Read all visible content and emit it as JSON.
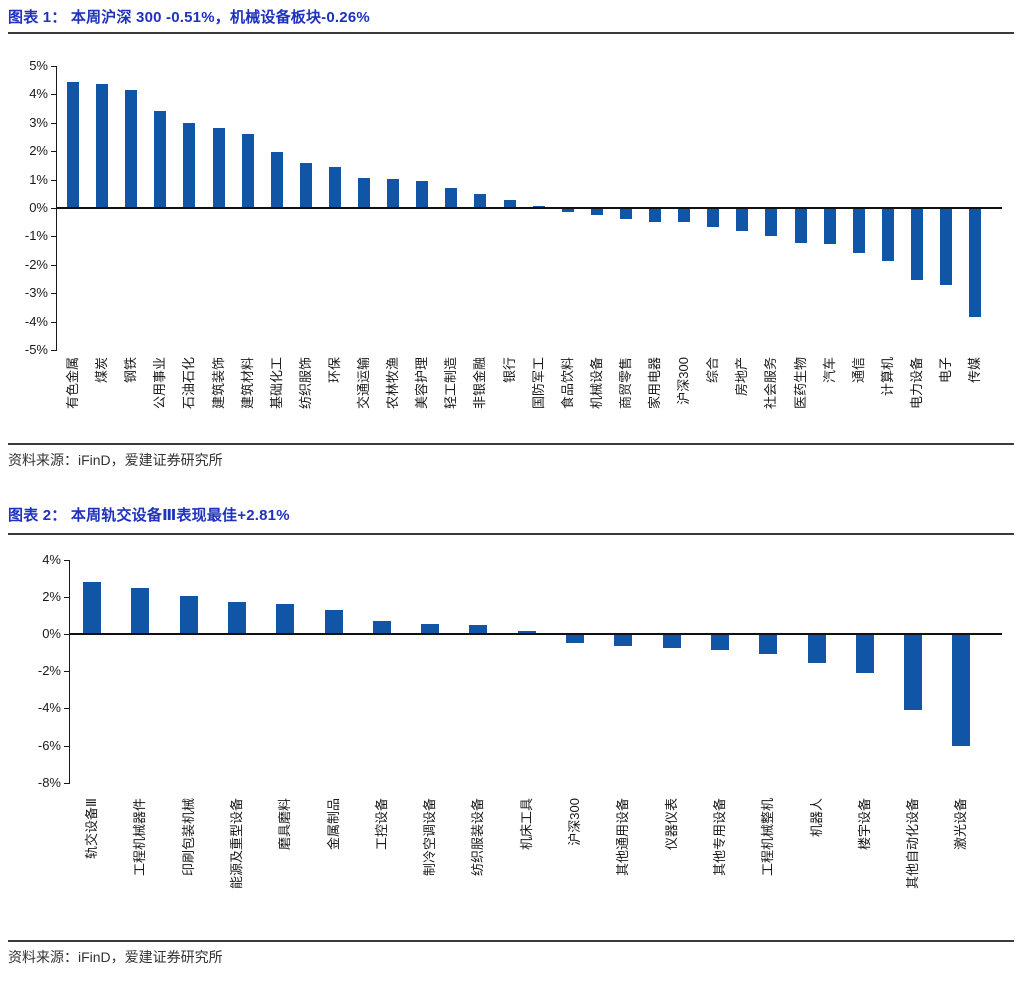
{
  "page": {
    "background": "#ffffff"
  },
  "chart_data": [
    {
      "type": "bar",
      "title": "图表 1： 本周沪深 300 -0.51%，机械设备板块-0.26%",
      "source": "资料来源：iFinD，爱建证券研究所",
      "categories": [
        "有色金属",
        "煤炭",
        "钢铁",
        "公用事业",
        "石油石化",
        "建筑装饰",
        "建筑材料",
        "基础化工",
        "纺织服饰",
        "环保",
        "交通运输",
        "农林牧渔",
        "美容护理",
        "轻工制造",
        "非银金融",
        "银行",
        "国防军工",
        "食品饮料",
        "机械设备",
        "商贸零售",
        "家用电器",
        "沪深300",
        "综合",
        "房地产",
        "社会服务",
        "医药生物",
        "汽车",
        "通信",
        "计算机",
        "电力设备",
        "电子",
        "传媒"
      ],
      "values": [
        4.42,
        4.38,
        4.15,
        3.42,
        3.0,
        2.82,
        2.62,
        1.98,
        1.57,
        1.45,
        1.07,
        1.03,
        0.96,
        0.71,
        0.49,
        0.29,
        0.08,
        -0.15,
        -0.26,
        -0.4,
        -0.48,
        -0.51,
        -0.68,
        -0.82,
        -1.0,
        -1.22,
        -1.28,
        -1.6,
        -1.85,
        -2.55,
        -2.7,
        -3.85
      ],
      "ylim": [
        -5,
        5
      ],
      "ytick_values": [
        5,
        4,
        3,
        2,
        1,
        0,
        -1,
        -2,
        -3,
        -4,
        -5
      ],
      "ytick_labels": [
        "5%",
        "4%",
        "3%",
        "2%",
        "1%",
        "0%",
        "-1%",
        "-2%",
        "-3%",
        "-4%",
        "-5%"
      ],
      "xlabel": "",
      "ylabel": "",
      "grid": false,
      "legend": null,
      "bar_color": "#1155A6"
    },
    {
      "type": "bar",
      "title": "图表 2： 本周轨交设备Ⅲ表现最佳+2.81%",
      "source": "资料来源：iFinD，爱建证券研究所",
      "categories": [
        "轨交设备Ⅲ",
        "工程机械器件",
        "印刷包装机械",
        "能源及重型设备",
        "磨具磨料",
        "金属制品",
        "工控设备",
        "制冷空调设备",
        "纺织服装设备",
        "机床工具",
        "沪深300",
        "其他通用设备",
        "仪器仪表",
        "其他专用设备",
        "工程机械整机",
        "机器人",
        "楼宇设备",
        "其他自动化设备",
        "激光设备"
      ],
      "values": [
        2.81,
        2.47,
        2.06,
        1.72,
        1.61,
        1.31,
        0.68,
        0.55,
        0.5,
        0.14,
        -0.51,
        -0.65,
        -0.75,
        -0.88,
        -1.05,
        -1.58,
        -2.1,
        -4.1,
        -6.02
      ],
      "ylim": [
        -8,
        4
      ],
      "ytick_values": [
        4,
        2,
        0,
        -2,
        -4,
        -6,
        -8
      ],
      "ytick_labels": [
        "4%",
        "2%",
        "0%",
        "-2%",
        "-4%",
        "-6%",
        "-8%"
      ],
      "xlabel": "",
      "ylabel": "",
      "grid": false,
      "legend": null,
      "bar_color": "#1155A6"
    }
  ],
  "colors": {
    "title_blue": "#1E32BE",
    "bar_blue": "#1155A6",
    "axis_black": "#1a1a1a",
    "rule_gray": "#3a3a3a"
  }
}
